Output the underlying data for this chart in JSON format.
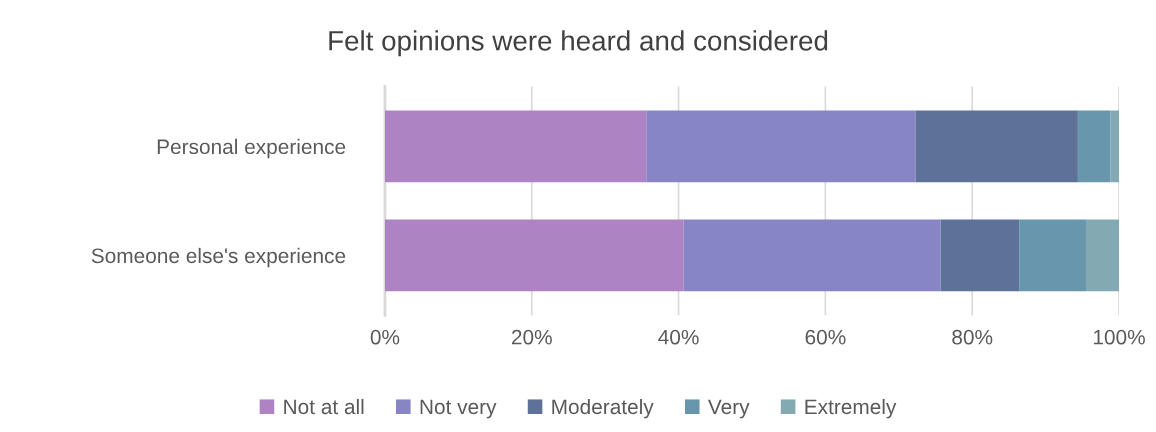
{
  "chart_data": {
    "type": "bar",
    "orientation": "horizontal",
    "stacked": true,
    "title": "Felt opinions were heard and considered",
    "categories": [
      "Personal experience",
      "Someone else's experience"
    ],
    "series": [
      {
        "name": "Not at all",
        "color": "#ad83c4",
        "values": [
          35.6,
          40.7
        ]
      },
      {
        "name": "Not very",
        "color": "#8785c6",
        "values": [
          36.7,
          35.0
        ]
      },
      {
        "name": "Moderately",
        "color": "#5e7299",
        "values": [
          22.1,
          10.7
        ]
      },
      {
        "name": "Very",
        "color": "#6796ad",
        "values": [
          4.4,
          9.1
        ]
      },
      {
        "name": "Extremely",
        "color": "#83aab3",
        "values": [
          1.2,
          4.5
        ]
      }
    ],
    "xlim": [
      0,
      100
    ],
    "xticks": [
      {
        "value": 0,
        "label": "0%"
      },
      {
        "value": 20,
        "label": "20%"
      },
      {
        "value": 40,
        "label": "40%"
      },
      {
        "value": 60,
        "label": "60%"
      },
      {
        "value": 80,
        "label": "80%"
      },
      {
        "value": 100,
        "label": "100%"
      }
    ],
    "grid": "x",
    "legend": "bottom"
  }
}
